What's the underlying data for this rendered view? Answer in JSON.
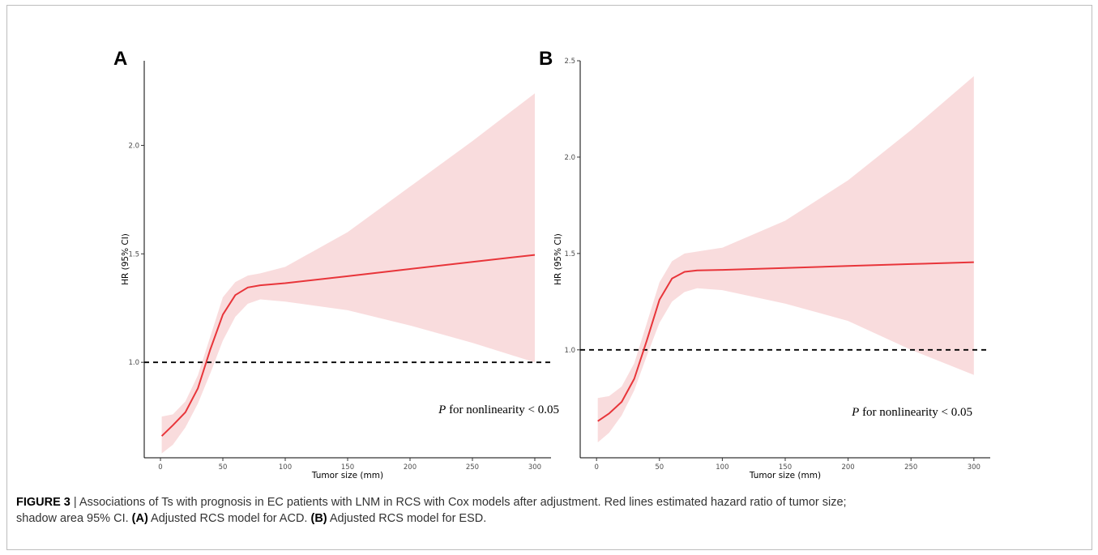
{
  "chart_data": [
    {
      "panel": "A",
      "type": "line",
      "xlabel": "Tumor size (mm)",
      "ylabel": "HR (95% CI)",
      "x_ticks": [
        0,
        50,
        100,
        150,
        200,
        250,
        300
      ],
      "y_ticks": [
        1.0,
        1.5,
        2.0
      ],
      "xlim": [
        -13,
        313
      ],
      "ylim": [
        0.56,
        2.39
      ],
      "reference_line": 1.0,
      "annotation": {
        "italic": "P",
        "text": " for nonlinearity < 0.05"
      },
      "fill_color": "#f9dcdd",
      "line_color": "#e8353a",
      "series": [
        {
          "x": [
            1,
            10,
            20,
            30,
            40,
            50,
            60,
            70,
            80,
            100,
            150,
            200,
            250,
            300
          ],
          "y": [
            0.66,
            0.71,
            0.77,
            0.88,
            1.06,
            1.22,
            1.31,
            1.345,
            1.355,
            1.365,
            1.397,
            1.43,
            1.463,
            1.495
          ],
          "lower": [
            0.58,
            0.62,
            0.7,
            0.81,
            0.95,
            1.1,
            1.21,
            1.27,
            1.29,
            1.28,
            1.24,
            1.17,
            1.09,
            1.0
          ],
          "upper": [
            0.75,
            0.76,
            0.82,
            0.94,
            1.12,
            1.3,
            1.37,
            1.4,
            1.41,
            1.44,
            1.6,
            1.81,
            2.02,
            2.24
          ]
        }
      ]
    },
    {
      "panel": "B",
      "type": "line",
      "xlabel": "Tumor size (mm)",
      "ylabel": "HR (95% CI)",
      "x_ticks": [
        0,
        50,
        100,
        150,
        200,
        250,
        300
      ],
      "y_ticks": [
        1.0,
        1.5,
        2.0,
        2.5
      ],
      "xlim": [
        -13,
        313
      ],
      "ylim": [
        0.44,
        2.5
      ],
      "reference_line": 1.0,
      "annotation": {
        "italic": "P",
        "text": " for nonlinearity < 0.05"
      },
      "fill_color": "#f9dcdd",
      "line_color": "#e8353a",
      "series": [
        {
          "x": [
            1,
            10,
            20,
            30,
            40,
            50,
            60,
            70,
            80,
            100,
            150,
            200,
            250,
            300
          ],
          "y": [
            0.63,
            0.67,
            0.73,
            0.85,
            1.05,
            1.26,
            1.37,
            1.405,
            1.412,
            1.415,
            1.425,
            1.435,
            1.445,
            1.455
          ],
          "lower": [
            0.52,
            0.57,
            0.66,
            0.79,
            0.97,
            1.14,
            1.25,
            1.3,
            1.32,
            1.31,
            1.24,
            1.15,
            1.0,
            0.87
          ],
          "upper": [
            0.75,
            0.76,
            0.81,
            0.93,
            1.14,
            1.35,
            1.46,
            1.5,
            1.51,
            1.53,
            1.67,
            1.88,
            2.14,
            2.42
          ]
        }
      ]
    }
  ],
  "caption": {
    "label": "FIGURE 3",
    "separator": " | ",
    "line1_text": "Associations of Ts with prognosis in EC patients with LNM in RCS with Cox models after adjustment. Red lines estimated hazard ratio of tumor size;",
    "line2_text": "shadow area 95% CI. ",
    "a_label": "(A)",
    "a_text": " Adjusted RCS model for ACD. ",
    "b_label": "(B)",
    "b_text": " Adjusted RCS model for ESD."
  }
}
